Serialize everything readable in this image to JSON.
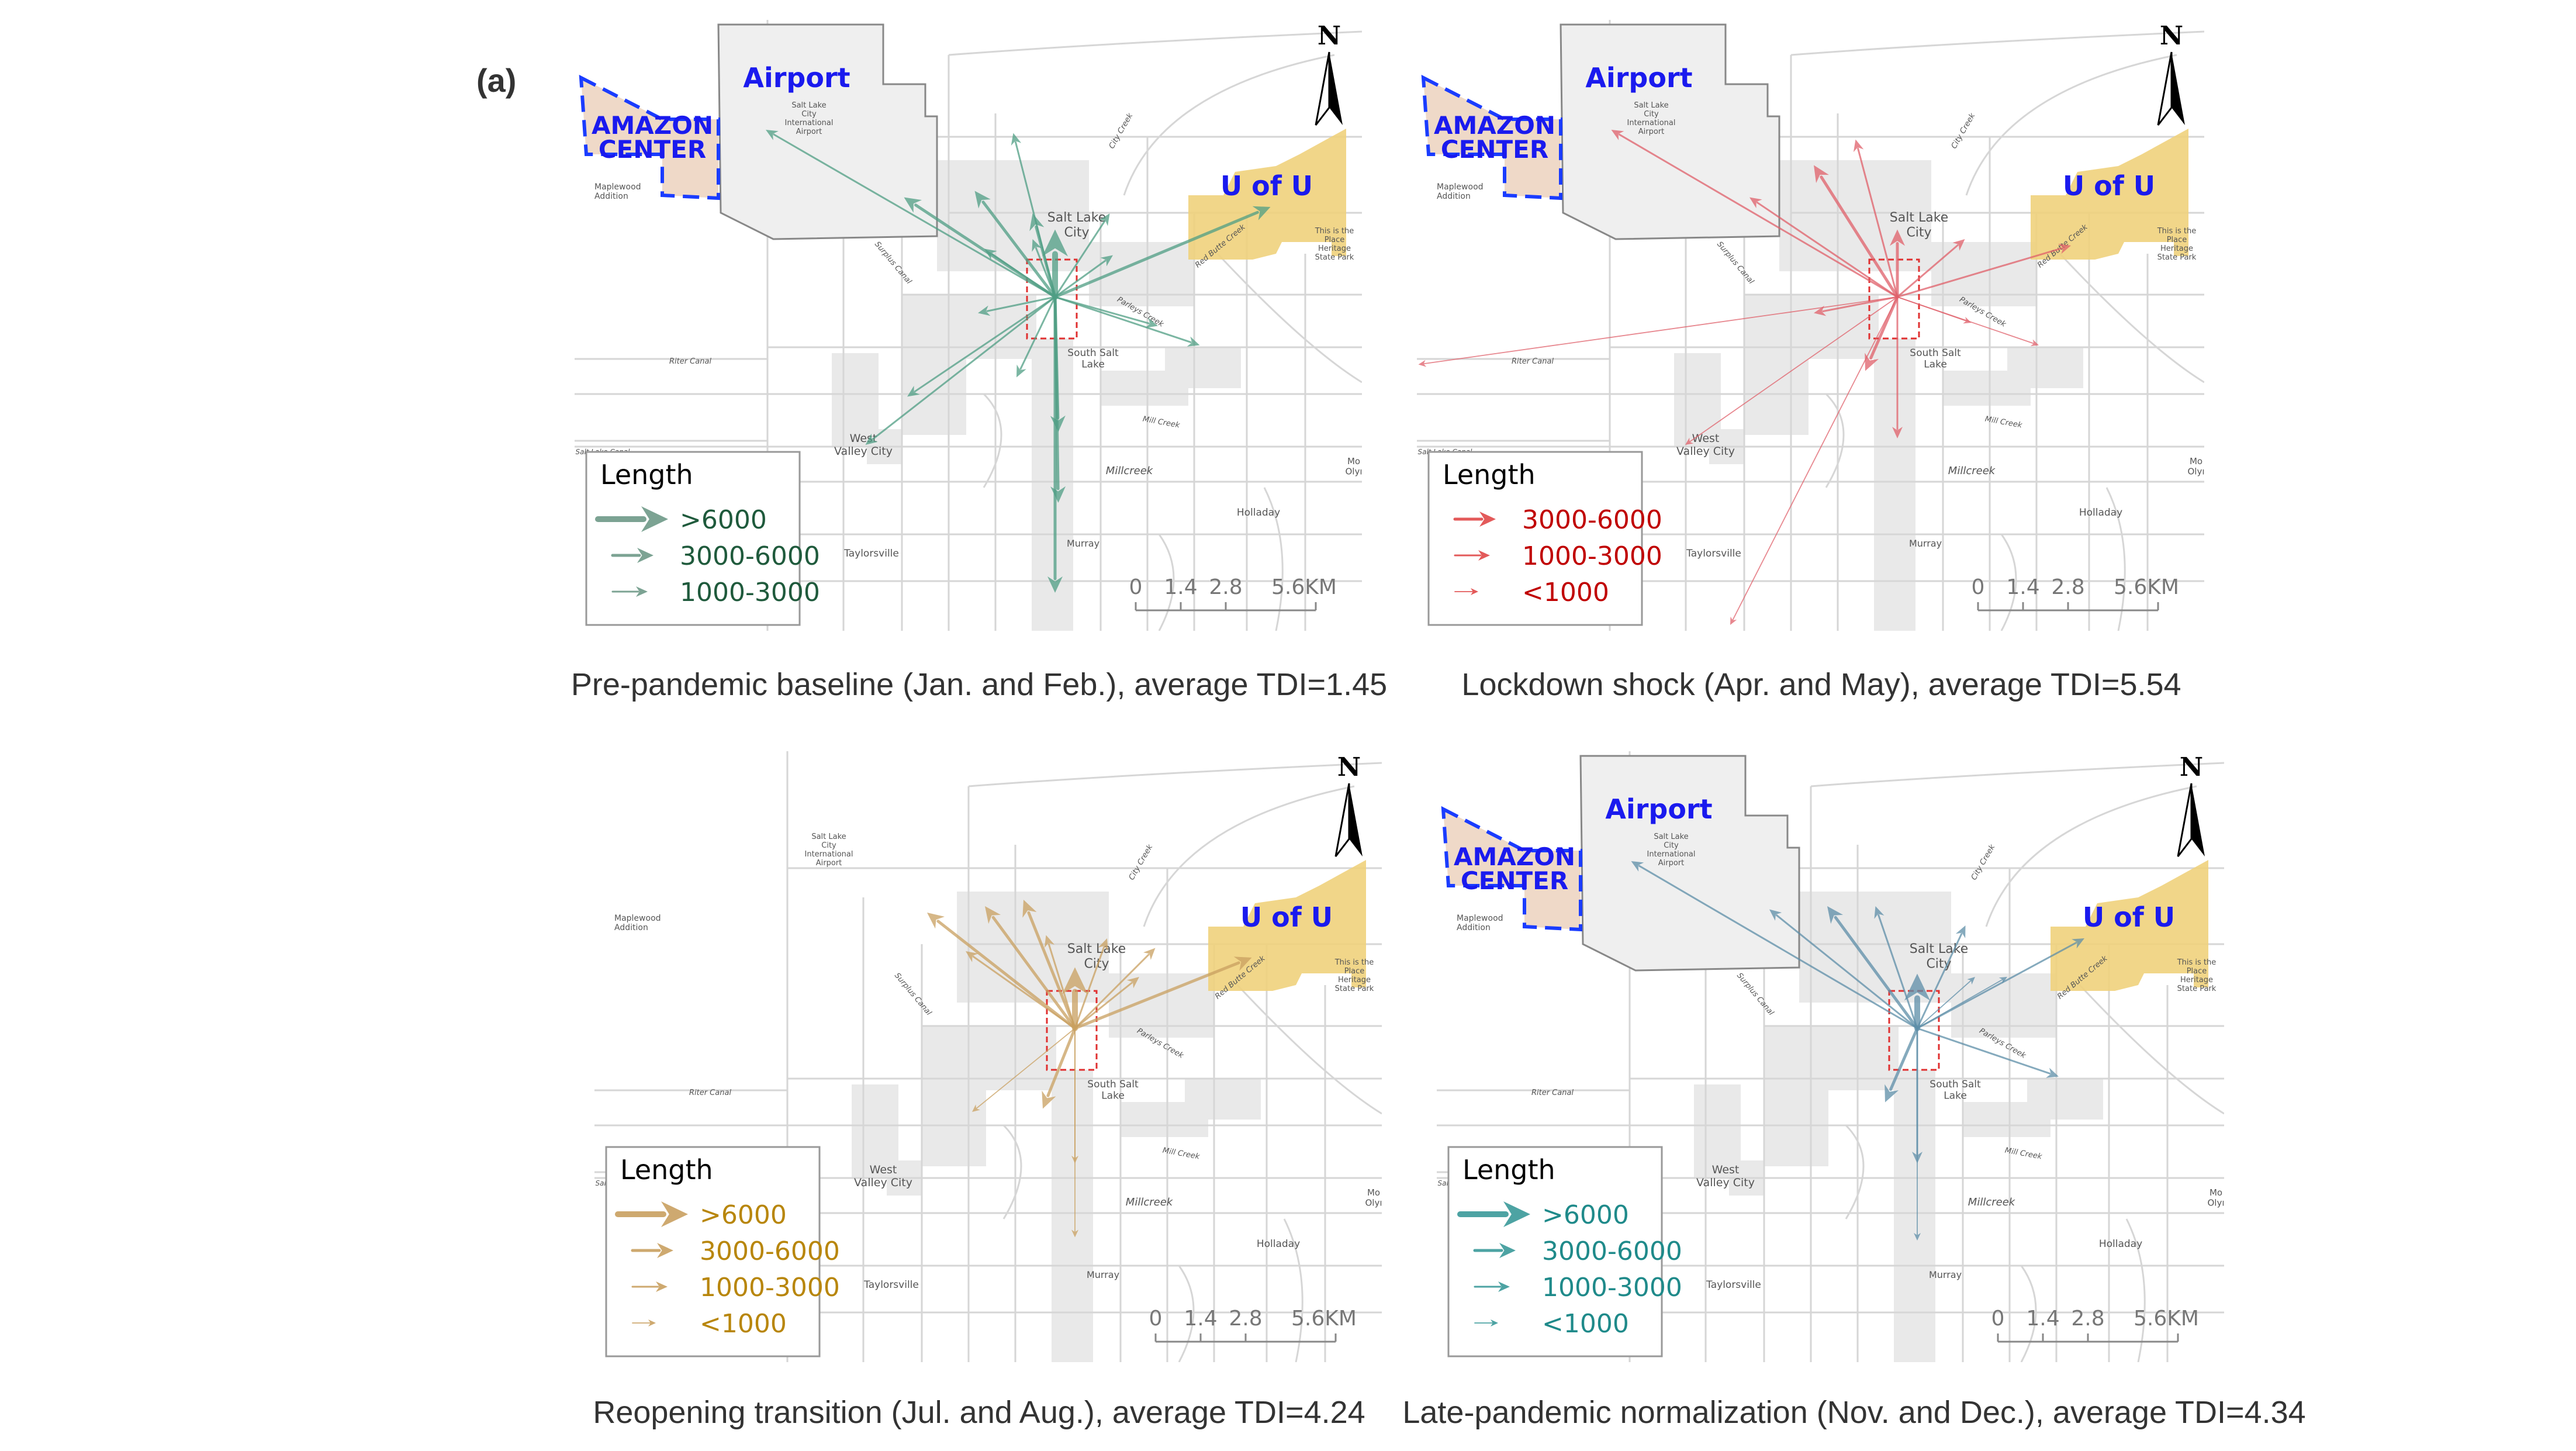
{
  "panel_label": "(a)",
  "map_labels": {
    "salt_lake_city": [
      "Salt Lake",
      "City"
    ],
    "south_salt_lake": [
      "South Salt",
      "Lake"
    ],
    "west_valley_city": [
      "West",
      "Valley City"
    ],
    "millcreek": [
      "Millcreek"
    ],
    "holladay": [
      "Holladay"
    ],
    "taylorsville": [
      "Taylorsville"
    ],
    "murray": [
      "Murray"
    ],
    "maplewood": [
      "Maplewood",
      "Addition"
    ],
    "mount_olympus": [
      "Mo",
      "Olyı"
    ],
    "riter_canal": [
      "Riter Canal"
    ],
    "salt_lake_canal": [
      "Salt Lake Canal"
    ],
    "surplus_canal": [
      "Surplus Canal"
    ],
    "mill_creek": [
      "Mill Creek"
    ],
    "parleys_creek": [
      "Parleys Creek"
    ],
    "red_butte_creek": [
      "Red Butte Creek"
    ],
    "city_creek": [
      "City Creek"
    ],
    "heritage_park": [
      "This is the",
      "Place",
      "Heritage",
      "State Park"
    ],
    "airport_small": [
      "Salt Lake",
      "City",
      "International",
      "Airport"
    ]
  },
  "highlight_labels": {
    "airport": "Airport",
    "amazon": [
      "AMAZON",
      "CENTER"
    ],
    "uofu": "U of U"
  },
  "north_label": "N",
  "scale_ticks": [
    "0",
    "1.4",
    "2.8",
    "5.6KM"
  ],
  "legend_classes": {
    "gt6000": ">6000",
    "3000-6000": "3000-6000",
    "1000-3000": "1000-3000",
    "lt1000": "<1000"
  },
  "colors": {
    "highlight_text": "#1a1aee",
    "amazon_fill": "#efd9c8",
    "uofu_fill": "#f0d27c",
    "airport_fill": "#efefef",
    "od_box": "#e03030"
  },
  "panels": [
    {
      "caption": "Pre-pandemic baseline (Jan. and Feb.), average TDI=1.45",
      "arrow_color": "#4f9e84",
      "legend_text_color": "#1f5a3c",
      "legend_arrow_color": "#6e9a88",
      "show_airport": true,
      "show_amazon": true,
      "legend_title": "Length",
      "legend_items": [
        "gt6000",
        "3000-6000",
        "1000-3000"
      ],
      "arrows": [
        {
          "east_km": -9.0,
          "north_km": 5.2,
          "class": "1000-3000"
        },
        {
          "east_km": -4.7,
          "north_km": 3.1,
          "class": "3000-6000"
        },
        {
          "east_km": -2.5,
          "north_km": 3.3,
          "class": "3000-6000"
        },
        {
          "east_km": -1.3,
          "north_km": 5.1,
          "class": "1000-3000"
        },
        {
          "east_km": -0.7,
          "north_km": 2.6,
          "class": "3000-6000"
        },
        {
          "east_km": -2.2,
          "north_km": 1.5,
          "class": "1000-3000"
        },
        {
          "east_km": -0.7,
          "north_km": 1.8,
          "class": "1000-3000"
        },
        {
          "east_km": 0.0,
          "north_km": 2.1,
          "class": "gt6000"
        },
        {
          "east_km": 1.7,
          "north_km": 2.6,
          "class": "1000-3000"
        },
        {
          "east_km": 1.8,
          "north_km": 1.3,
          "class": "1000-3000"
        },
        {
          "east_km": 6.7,
          "north_km": 2.8,
          "class": "3000-6000"
        },
        {
          "east_km": -2.4,
          "north_km": -0.5,
          "class": "1000-3000"
        },
        {
          "east_km": 3.2,
          "north_km": -0.9,
          "class": "1000-3000"
        },
        {
          "east_km": 4.5,
          "north_km": -1.5,
          "class": "1000-3000"
        },
        {
          "east_km": -1.2,
          "north_km": -2.5,
          "class": "1000-3000"
        },
        {
          "east_km": -4.6,
          "north_km": -3.1,
          "class": "1000-3000"
        },
        {
          "east_km": -5.9,
          "north_km": -4.6,
          "class": "1000-3000"
        },
        {
          "east_km": 0.1,
          "north_km": -4.2,
          "class": "3000-6000"
        },
        {
          "east_km": 0.1,
          "north_km": -6.4,
          "class": "3000-6000"
        },
        {
          "east_km": 0.0,
          "north_km": -9.2,
          "class": "3000-6000"
        }
      ]
    },
    {
      "caption": "Lockdown shock (Apr. and May), average TDI=5.54",
      "arrow_color": "#e0606a",
      "legend_text_color": "#c00000",
      "legend_arrow_color": "#e04848",
      "show_airport": true,
      "show_amazon": true,
      "legend_title": "Length",
      "legend_items": [
        "3000-6000",
        "1000-3000",
        "lt1000"
      ],
      "arrows": [
        {
          "east_km": -8.9,
          "north_km": 5.2,
          "class": "1000-3000"
        },
        {
          "east_km": -2.6,
          "north_km": 4.1,
          "class": "3000-6000"
        },
        {
          "east_km": -1.3,
          "north_km": 4.9,
          "class": "1000-3000"
        },
        {
          "east_km": -4.6,
          "north_km": 3.1,
          "class": "1000-3000"
        },
        {
          "east_km": 0.0,
          "north_km": 2.1,
          "class": "3000-6000"
        },
        {
          "east_km": 2.1,
          "north_km": 1.8,
          "class": "1000-3000"
        },
        {
          "east_km": 5.4,
          "north_km": 1.6,
          "class": "1000-3000"
        },
        {
          "east_km": -14.9,
          "north_km": -2.1,
          "class": "lt1000"
        },
        {
          "east_km": -2.6,
          "north_km": -0.5,
          "class": "1000-3000"
        },
        {
          "east_km": 4.4,
          "north_km": -1.5,
          "class": "lt1000"
        },
        {
          "east_km": -1.0,
          "north_km": -2.3,
          "class": "3000-6000"
        },
        {
          "east_km": 0.0,
          "north_km": -4.4,
          "class": "1000-3000"
        },
        {
          "east_km": -5.2,
          "north_km": -10.2,
          "class": "lt1000"
        },
        {
          "east_km": -6.6,
          "north_km": -4.6,
          "class": "lt1000"
        },
        {
          "east_km": 2.3,
          "north_km": -0.8,
          "class": "lt1000"
        }
      ]
    },
    {
      "caption": "Reopening transition (Jul. and Aug.), average TDI=4.24",
      "arrow_color": "#c9a060",
      "legend_text_color": "#b8860b",
      "legend_arrow_color": "#c9a060",
      "show_airport": false,
      "show_amazon": false,
      "legend_title": "Length",
      "legend_items": [
        "gt6000",
        "3000-6000",
        "1000-3000",
        "lt1000"
      ],
      "arrows": [
        {
          "east_km": -4.6,
          "north_km": 3.6,
          "class": "3000-6000"
        },
        {
          "east_km": -2.8,
          "north_km": 3.8,
          "class": "3000-6000"
        },
        {
          "east_km": -1.6,
          "north_km": 4.0,
          "class": "3000-6000"
        },
        {
          "east_km": -3.4,
          "north_km": 2.4,
          "class": "1000-3000"
        },
        {
          "east_km": -0.9,
          "north_km": 2.9,
          "class": "1000-3000"
        },
        {
          "east_km": 0.0,
          "north_km": 1.9,
          "class": "gt6000"
        },
        {
          "east_km": 1.0,
          "north_km": 2.8,
          "class": "1000-3000"
        },
        {
          "east_km": 2.0,
          "north_km": 1.6,
          "class": "1000-3000"
        },
        {
          "east_km": 2.5,
          "north_km": 2.5,
          "class": "1000-3000"
        },
        {
          "east_km": 5.5,
          "north_km": 2.2,
          "class": "3000-6000"
        },
        {
          "east_km": -1.0,
          "north_km": -2.5,
          "class": "3000-6000"
        },
        {
          "east_km": -3.2,
          "north_km": -2.6,
          "class": "lt1000"
        },
        {
          "east_km": 0.0,
          "north_km": -4.2,
          "class": "lt1000"
        },
        {
          "east_km": 0.0,
          "north_km": -6.5,
          "class": "lt1000"
        }
      ]
    },
    {
      "caption": "Late-pandemic normalization (Nov. and Dec.), average TDI=4.34",
      "arrow_color": "#5d8ea8",
      "legend_text_color": "#1f8a8a",
      "legend_arrow_color": "#3a9a9a",
      "show_airport": true,
      "show_amazon": true,
      "legend_title": "Length",
      "legend_items": [
        "gt6000",
        "3000-6000",
        "1000-3000",
        "lt1000"
      ],
      "arrows": [
        {
          "east_km": -8.9,
          "north_km": 5.2,
          "class": "1000-3000"
        },
        {
          "east_km": -4.6,
          "north_km": 3.7,
          "class": "1000-3000"
        },
        {
          "east_km": -2.8,
          "north_km": 3.8,
          "class": "3000-6000"
        },
        {
          "east_km": -1.3,
          "north_km": 3.8,
          "class": "1000-3000"
        },
        {
          "east_km": 0.0,
          "north_km": 1.7,
          "class": "gt6000"
        },
        {
          "east_km": 1.5,
          "north_km": 3.2,
          "class": "1000-3000"
        },
        {
          "east_km": 1.8,
          "north_km": 1.6,
          "class": "lt1000"
        },
        {
          "east_km": 2.8,
          "north_km": 1.6,
          "class": "lt1000"
        },
        {
          "east_km": 5.2,
          "north_km": 2.8,
          "class": "1000-3000"
        },
        {
          "east_km": 4.4,
          "north_km": -1.5,
          "class": "1000-3000"
        },
        {
          "east_km": -1.0,
          "north_km": -2.3,
          "class": "3000-6000"
        },
        {
          "east_km": 0.0,
          "north_km": -4.2,
          "class": "1000-3000"
        },
        {
          "east_km": 0.0,
          "north_km": -6.6,
          "class": "lt1000"
        }
      ]
    }
  ]
}
